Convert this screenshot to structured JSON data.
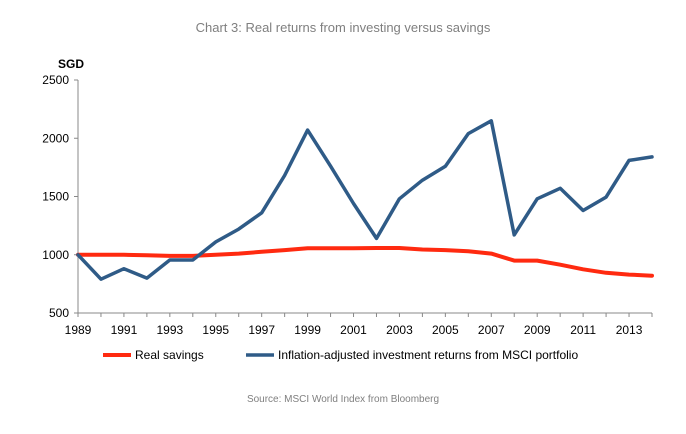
{
  "chart_data": {
    "type": "line",
    "title": "Chart 3: Real returns from investing versus savings",
    "unit_label": "SGD",
    "source": "Source: MSCI World Index from Bloomberg",
    "ylim": [
      500,
      2500
    ],
    "yticks": [
      500,
      1000,
      1500,
      2000,
      2500
    ],
    "xlim": [
      1989,
      2014
    ],
    "xticks": [
      1989,
      1991,
      1993,
      1995,
      1997,
      1999,
      2001,
      2003,
      2005,
      2007,
      2009,
      2011,
      2013
    ],
    "grid": false,
    "legend_position": "bottom",
    "series": [
      {
        "name": "Real savings",
        "color": "#ff2a10",
        "points": [
          [
            1989,
            1000
          ],
          [
            1990,
            1000
          ],
          [
            1991,
            1000
          ],
          [
            1992,
            995
          ],
          [
            1993,
            990
          ],
          [
            1994,
            990
          ],
          [
            1995,
            1000
          ],
          [
            1996,
            1010
          ],
          [
            1997,
            1025
          ],
          [
            1998,
            1040
          ],
          [
            1999,
            1055
          ],
          [
            2000,
            1055
          ],
          [
            2001,
            1055
          ],
          [
            2002,
            1058
          ],
          [
            2003,
            1058
          ],
          [
            2004,
            1045
          ],
          [
            2005,
            1040
          ],
          [
            2006,
            1030
          ],
          [
            2007,
            1010
          ],
          [
            2008,
            950
          ],
          [
            2009,
            950
          ],
          [
            2010,
            915
          ],
          [
            2011,
            875
          ],
          [
            2012,
            845
          ],
          [
            2013,
            830
          ],
          [
            2014,
            820
          ]
        ]
      },
      {
        "name": "Inflation-adjusted investment returns from MSCI portfolio",
        "color": "#2f5b87",
        "points": [
          [
            1989,
            1000
          ],
          [
            1990,
            790
          ],
          [
            1991,
            880
          ],
          [
            1992,
            800
          ],
          [
            1993,
            955
          ],
          [
            1994,
            955
          ],
          [
            1995,
            1110
          ],
          [
            1996,
            1220
          ],
          [
            1997,
            1360
          ],
          [
            1998,
            1680
          ],
          [
            1999,
            2070
          ],
          [
            2000,
            1760
          ],
          [
            2001,
            1440
          ],
          [
            2002,
            1140
          ],
          [
            2003,
            1480
          ],
          [
            2004,
            1640
          ],
          [
            2005,
            1760
          ],
          [
            2006,
            2040
          ],
          [
            2007,
            2150
          ],
          [
            2008,
            1170
          ],
          [
            2009,
            1480
          ],
          [
            2010,
            1570
          ],
          [
            2011,
            1380
          ],
          [
            2012,
            1495
          ],
          [
            2013,
            1810
          ],
          [
            2014,
            1840
          ]
        ]
      }
    ]
  }
}
